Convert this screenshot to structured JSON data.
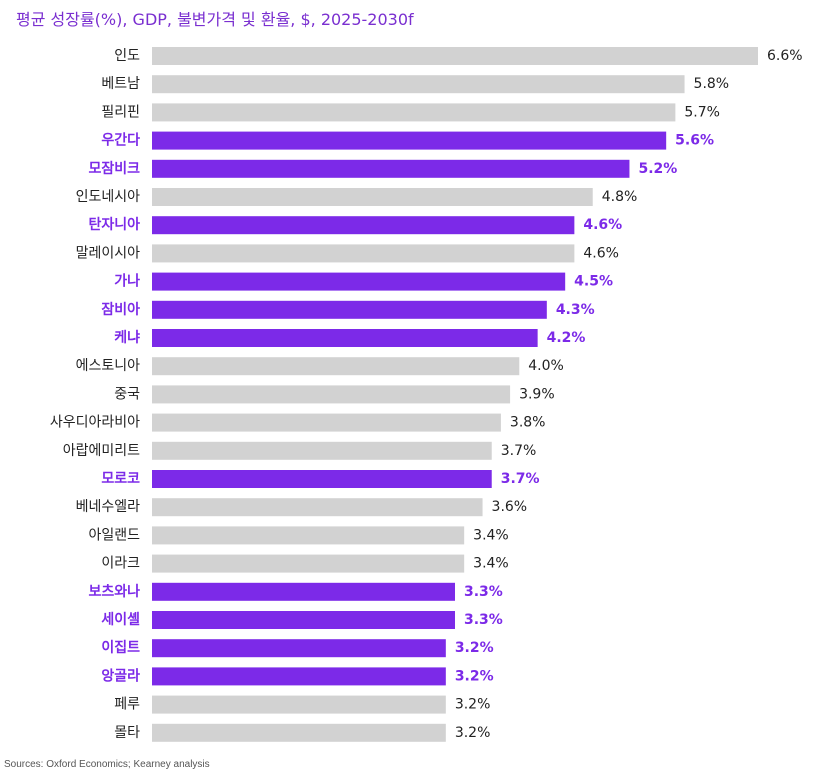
{
  "title": "평균 성장률(%), GDP, 불변가격 및 환율, $, 2025-2030f",
  "source": "Sources: Oxford Economics; Kearney analysis",
  "colors": {
    "highlight": "#7c2ae8",
    "default": "#d2d2d2",
    "highlight_text": "#7c2ae8",
    "default_text": "#222222"
  },
  "chart_data": {
    "type": "bar",
    "orientation": "horizontal",
    "title": "평균 성장률(%), GDP, 불변가격 및 환율, $, 2025-2030f",
    "grid": false,
    "categories": [
      "인도",
      "베트남",
      "필리핀",
      "우간다",
      "모잠비크",
      "인도네시아",
      "탄자니아",
      "말레이시아",
      "가나",
      "잠비아",
      "케냐",
      "에스토니아",
      "중국",
      "사우디아라비아",
      "아랍에미리트",
      "모로코",
      "베네수엘라",
      "아일랜드",
      "이라크",
      "보츠와나",
      "세이셸",
      "이집트",
      "앙골라",
      "페루",
      "몰타"
    ],
    "values": [
      6.6,
      5.8,
      5.7,
      5.6,
      5.2,
      4.8,
      4.6,
      4.6,
      4.5,
      4.3,
      4.2,
      4.0,
      3.9,
      3.8,
      3.7,
      3.7,
      3.6,
      3.4,
      3.4,
      3.3,
      3.3,
      3.2,
      3.2,
      3.2,
      3.2
    ],
    "value_labels": [
      "6.6%",
      "5.8%",
      "5.7%",
      "5.6%",
      "5.2%",
      "4.8%",
      "4.6%",
      "4.6%",
      "4.5%",
      "4.3%",
      "4.2%",
      "4.0%",
      "3.9%",
      "3.8%",
      "3.7%",
      "3.7%",
      "3.6%",
      "3.4%",
      "3.4%",
      "3.3%",
      "3.3%",
      "3.2%",
      "3.2%",
      "3.2%",
      "3.2%"
    ],
    "highlighted": [
      false,
      false,
      false,
      true,
      true,
      false,
      true,
      false,
      true,
      true,
      true,
      false,
      false,
      false,
      false,
      true,
      false,
      false,
      false,
      true,
      true,
      true,
      true,
      false,
      false
    ]
  }
}
